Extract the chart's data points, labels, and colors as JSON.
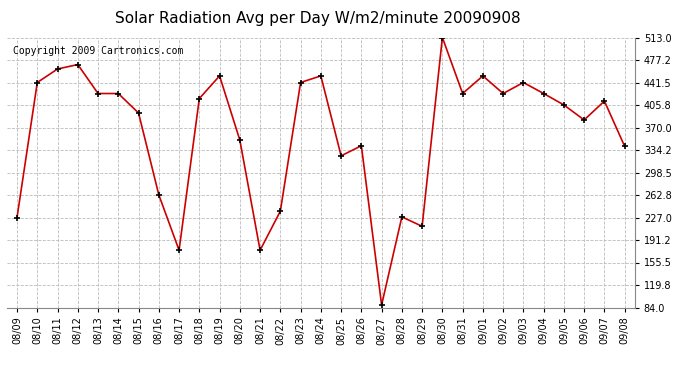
{
  "title": "Solar Radiation Avg per Day W/m2/minute 20090908",
  "copyright": "Copyright 2009 Cartronics.com",
  "dates": [
    "08/09",
    "08/10",
    "08/11",
    "08/12",
    "08/13",
    "08/14",
    "08/15",
    "08/16",
    "08/17",
    "08/18",
    "08/19",
    "08/20",
    "08/21",
    "08/22",
    "08/23",
    "08/24",
    "08/25",
    "08/26",
    "08/27",
    "08/28",
    "08/29",
    "08/30",
    "08/31",
    "09/01",
    "09/02",
    "09/03",
    "09/04",
    "09/05",
    "09/06",
    "09/07",
    "09/08"
  ],
  "values": [
    227.0,
    441.5,
    463.0,
    470.0,
    424.0,
    424.0,
    393.0,
    263.0,
    175.0,
    416.0,
    452.0,
    350.0,
    175.0,
    237.0,
    441.5,
    452.0,
    325.0,
    341.0,
    88.0,
    228.0,
    213.0,
    513.0,
    424.0,
    452.0,
    424.0,
    441.5,
    424.0,
    405.8,
    382.0,
    412.0,
    340.0
  ],
  "yticks": [
    84.0,
    119.8,
    155.5,
    191.2,
    227.0,
    262.8,
    298.5,
    334.2,
    370.0,
    405.8,
    441.5,
    477.2,
    513.0
  ],
  "ymin": 84.0,
  "ymax": 513.0,
  "line_color": "#cc0000",
  "marker": "+",
  "marker_color": "#000000",
  "bg_color": "#ffffff",
  "plot_bg_color": "#ffffff",
  "grid_color": "#bbbbbb",
  "title_fontsize": 11,
  "copyright_fontsize": 7,
  "tick_fontsize": 7,
  "ytick_fontsize": 7
}
